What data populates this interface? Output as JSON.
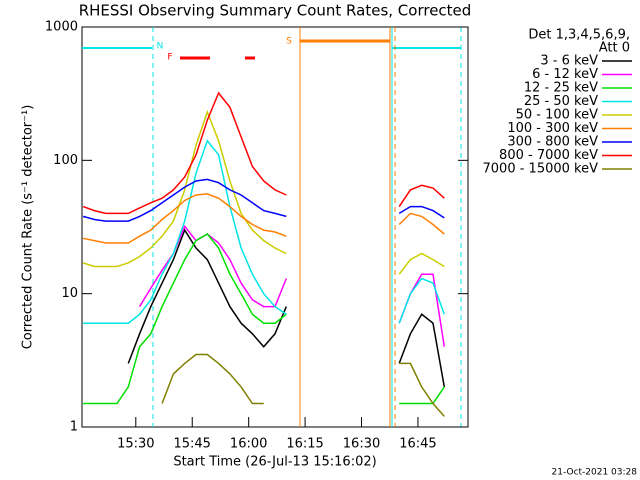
{
  "chart_data": {
    "type": "line",
    "log_y": true,
    "title": "RHESSI Observing Summary Count Rates, Corrected",
    "x_label": "Start Time (26-Jul-13 15:16:02)",
    "y_label": "Corrected Count Rate (s⁻¹ detector⁻¹)",
    "footer": "21-Oct-2021 03:28",
    "legend_title": [
      "Det 1,3,4,5,6,9,",
      "Att 0"
    ],
    "annotations": [
      {
        "text": "N",
        "color": "#00e5e5"
      },
      {
        "text": "F",
        "color": "#ff0000"
      },
      {
        "text": "S",
        "color": "#ff7f00"
      }
    ],
    "xlim": [
      15.7,
      118.3
    ],
    "xticks": [
      {
        "value": 30,
        "label": "15:30"
      },
      {
        "value": 45,
        "label": "15:45"
      },
      {
        "value": 60,
        "label": "16:00"
      },
      {
        "value": 75,
        "label": "16:15"
      },
      {
        "value": 90,
        "label": "16:30"
      },
      {
        "value": 105,
        "label": "16:45"
      }
    ],
    "ylim": [
      1,
      1000
    ],
    "yticks": [
      1,
      10,
      100,
      1000
    ],
    "x": [
      16,
      19,
      22,
      25,
      28,
      31,
      34,
      37,
      40,
      43,
      46,
      49,
      52,
      55,
      58,
      61,
      64,
      67,
      70,
      85,
      100,
      103,
      106,
      109,
      112
    ],
    "series": [
      {
        "name": "3 - 6 keV",
        "color": "#000000",
        "values": [
          null,
          null,
          null,
          null,
          3,
          5,
          8,
          12,
          18,
          30,
          22,
          18,
          12,
          8,
          6,
          5,
          4,
          5,
          8,
          null,
          3,
          5,
          7,
          6,
          2
        ]
      },
      {
        "name": "6 - 12 keV",
        "color": "#ff00ff",
        "values": [
          null,
          null,
          null,
          null,
          null,
          8,
          11,
          15,
          20,
          32,
          25,
          28,
          24,
          18,
          12,
          9,
          8,
          8,
          13,
          null,
          6,
          10,
          14,
          14,
          4
        ]
      },
      {
        "name": "12 - 25 keV",
        "color": "#00e000",
        "values": [
          1.5,
          1.5,
          1.5,
          1.5,
          2,
          4,
          5,
          8,
          12,
          18,
          25,
          28,
          22,
          14,
          10,
          7,
          6,
          6,
          7,
          null,
          1.5,
          1.5,
          1.5,
          1.5,
          2
        ]
      },
      {
        "name": "25 - 50 keV",
        "color": "#00e5e5",
        "values": [
          6,
          6,
          6,
          6,
          6,
          7,
          9,
          14,
          20,
          35,
          80,
          140,
          110,
          45,
          22,
          14,
          10,
          8,
          7,
          null,
          6,
          10,
          13,
          12,
          7
        ]
      },
      {
        "name": "50 - 100 keV",
        "color": "#cccc00",
        "values": [
          17,
          16,
          16,
          16,
          17,
          19,
          22,
          27,
          35,
          60,
          130,
          230,
          140,
          70,
          40,
          30,
          25,
          22,
          20,
          null,
          14,
          18,
          20,
          18,
          16
        ]
      },
      {
        "name": "100 - 300 keV",
        "color": "#ff7f00",
        "values": [
          26,
          25,
          24,
          24,
          24,
          27,
          30,
          36,
          42,
          50,
          55,
          56,
          52,
          45,
          38,
          33,
          30,
          29,
          27,
          null,
          33,
          40,
          38,
          33,
          28
        ]
      },
      {
        "name": "300 - 800 keV",
        "color": "#0000ff",
        "values": [
          38,
          36,
          35,
          35,
          35,
          38,
          42,
          48,
          55,
          63,
          70,
          72,
          68,
          60,
          55,
          48,
          42,
          40,
          38,
          null,
          40,
          45,
          45,
          42,
          37
        ]
      },
      {
        "name": "800 - 7000 keV",
        "color": "#ff0000",
        "values": [
          45,
          42,
          40,
          40,
          40,
          44,
          48,
          52,
          60,
          75,
          110,
          200,
          320,
          250,
          150,
          90,
          70,
          60,
          55,
          null,
          45,
          60,
          65,
          62,
          52
        ]
      },
      {
        "name": "7000 - 15000 keV",
        "color": "#808000",
        "values": [
          null,
          null,
          null,
          null,
          null,
          null,
          null,
          1.5,
          2.5,
          3,
          3.5,
          3.5,
          3,
          2.5,
          2,
          1.5,
          1.5,
          null,
          null,
          null,
          3,
          3,
          2,
          1.5,
          1.2
        ]
      }
    ]
  }
}
